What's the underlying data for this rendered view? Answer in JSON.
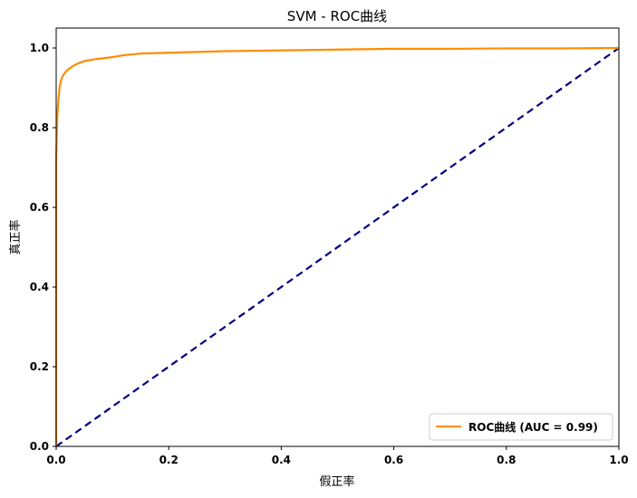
{
  "chart_data": {
    "type": "line",
    "title": "SVM - ROC曲线",
    "xlabel": "假正率",
    "ylabel": "真正率",
    "xlim": [
      0,
      1
    ],
    "ylim": [
      0,
      1.05
    ],
    "xticks": [
      0.0,
      0.2,
      0.4,
      0.6,
      0.8,
      1.0
    ],
    "yticks": [
      0.0,
      0.2,
      0.4,
      0.6,
      0.8,
      1.0
    ],
    "xtick_labels": [
      "0.0",
      "0.2",
      "0.4",
      "0.6",
      "0.8",
      "1.0"
    ],
    "ytick_labels": [
      "0.0",
      "0.2",
      "0.4",
      "0.6",
      "0.8",
      "1.0"
    ],
    "grid": false,
    "legend_position": "lower-right",
    "series": [
      {
        "name": "ROC曲线 (AUC = 0.99)",
        "color": "#ff8c00",
        "style": "solid",
        "x": [
          0.0,
          0.0,
          0.002,
          0.004,
          0.006,
          0.008,
          0.01,
          0.015,
          0.02,
          0.03,
          0.04,
          0.05,
          0.07,
          0.1,
          0.12,
          0.15,
          0.2,
          0.25,
          0.3,
          0.35,
          0.4,
          0.45,
          0.5,
          0.6,
          0.7,
          0.8,
          0.9,
          1.0
        ],
        "y": [
          0.0,
          0.72,
          0.83,
          0.87,
          0.9,
          0.915,
          0.925,
          0.937,
          0.945,
          0.955,
          0.962,
          0.967,
          0.972,
          0.977,
          0.982,
          0.986,
          0.988,
          0.99,
          0.992,
          0.993,
          0.994,
          0.995,
          0.996,
          0.998,
          0.998,
          0.999,
          0.999,
          1.0
        ]
      },
      {
        "name": "",
        "color": "#000080",
        "style": "dashed",
        "x": [
          0,
          1
        ],
        "y": [
          0,
          1
        ]
      }
    ]
  }
}
